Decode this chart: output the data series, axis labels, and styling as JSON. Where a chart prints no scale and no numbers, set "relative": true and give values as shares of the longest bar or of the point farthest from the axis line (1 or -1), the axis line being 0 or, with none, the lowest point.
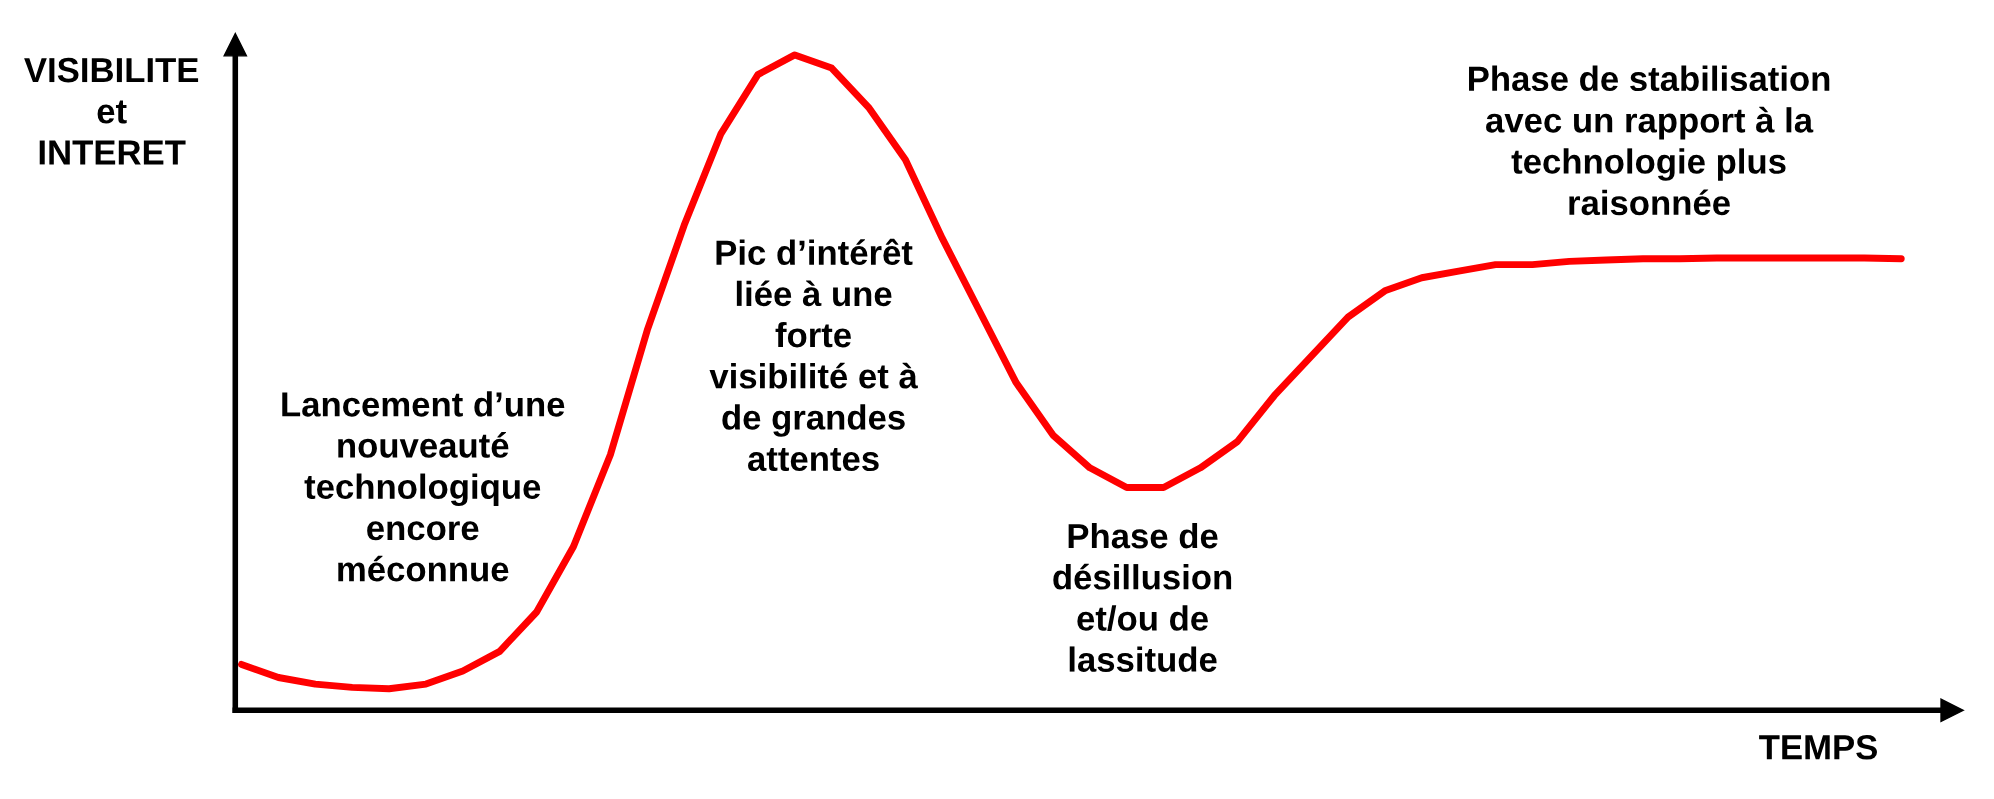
{
  "chart_data": {
    "type": "line",
    "relative": true,
    "xlabel": "TEMPS",
    "ylabel": "VISIBILITE\net\nINTERET",
    "categories": [
      null,
      null,
      null,
      null,
      null,
      null,
      null,
      null,
      null,
      null,
      null,
      null,
      null,
      null,
      null,
      null,
      null,
      null,
      null,
      null,
      null,
      null,
      null,
      null,
      null,
      null,
      null,
      null,
      null,
      null,
      null,
      null,
      null,
      null,
      null,
      null,
      null,
      null,
      null,
      null,
      null,
      null,
      null,
      null,
      null,
      null
    ],
    "series": [
      {
        "color": "#ff0000",
        "values": [
          0.07,
          0.05,
          0.04,
          0.035,
          0.033,
          0.04,
          0.06,
          0.09,
          0.15,
          0.25,
          0.39,
          0.58,
          0.74,
          0.88,
          0.97,
          1.0,
          0.98,
          0.92,
          0.84,
          0.72,
          0.61,
          0.5,
          0.42,
          0.37,
          0.34,
          0.34,
          0.37,
          0.41,
          0.48,
          0.54,
          0.6,
          0.64,
          0.66,
          0.67,
          0.68,
          0.68,
          0.685,
          0.687,
          0.689,
          0.689,
          0.69,
          0.69,
          0.69,
          0.69,
          0.69,
          0.689
        ]
      }
    ],
    "annotations": [
      "Lancement d’une\nnouveauté\ntechnologique\nencore\nméconnue",
      "Pic d’intérêt\nliée à une\nforte\nvisibilité et à\nde grandes\nattentes",
      "Phase de\ndésillusion\net/ou de\nlassitude",
      "Phase de stabilisation\navec un rapport à la\ntechnologie plus\nraisonnée"
    ],
    "grid": false,
    "legend": false
  }
}
